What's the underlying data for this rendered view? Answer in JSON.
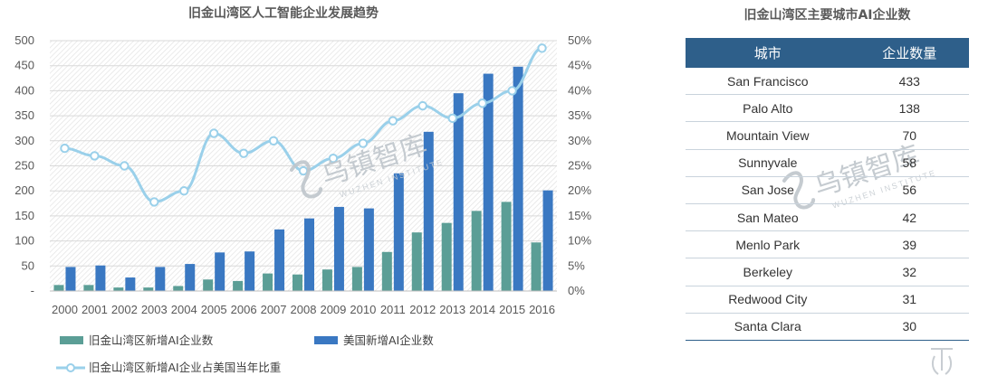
{
  "chart_data": [
    {
      "type": "bar+line",
      "title": "旧金山湾区人工智能企业发展趋势",
      "categories": [
        "2000",
        "2001",
        "2002",
        "2003",
        "2004",
        "2005",
        "2006",
        "2007",
        "2008",
        "2009",
        "2010",
        "2011",
        "2012",
        "2013",
        "2014",
        "2015",
        "2016"
      ],
      "y_left": {
        "ticks": [
          "-",
          "50",
          "100",
          "150",
          "200",
          "250",
          "300",
          "350",
          "400",
          "450",
          "500"
        ],
        "ylim": [
          0,
          500
        ]
      },
      "y_right": {
        "ticks": [
          "0%",
          "5%",
          "10%",
          "15%",
          "20%",
          "25%",
          "30%",
          "35%",
          "40%",
          "45%",
          "50%"
        ],
        "ylim": [
          0,
          50
        ]
      },
      "grid": true,
      "legend_position": "bottom",
      "series": [
        {
          "name": "旧金山湾区新增AI企业数",
          "kind": "bar",
          "axis": "left",
          "color": "#5b9e96",
          "values": [
            12,
            12,
            7,
            7,
            10,
            23,
            20,
            35,
            33,
            43,
            48,
            78,
            117,
            136,
            160,
            178,
            97
          ]
        },
        {
          "name": "美国新增AI企业数",
          "kind": "bar",
          "axis": "left",
          "color": "#3a78c2",
          "values": [
            48,
            51,
            27,
            48,
            54,
            77,
            79,
            123,
            145,
            168,
            165,
            235,
            318,
            395,
            434,
            448,
            201
          ]
        },
        {
          "name": "旧金山湾区新增AI企业占美国当年比重",
          "kind": "line",
          "axis": "right",
          "color": "#9ad0ea",
          "values": [
            28.5,
            27,
            25,
            17.8,
            20,
            31.5,
            27.5,
            30,
            24,
            26.5,
            29.5,
            34,
            37,
            34.5,
            37.5,
            40,
            48.5
          ]
        }
      ]
    },
    {
      "type": "table",
      "title": "旧金山湾区主要城市AI企业数",
      "columns": [
        "城市",
        "企业数量"
      ],
      "rows": [
        [
          "San Francisco",
          "433"
        ],
        [
          "Palo Alto",
          "138"
        ],
        [
          "Mountain View",
          "70"
        ],
        [
          "Sunnyvale",
          "58"
        ],
        [
          "San Jose",
          "56"
        ],
        [
          "San Mateo",
          "42"
        ],
        [
          "Menlo Park",
          "39"
        ],
        [
          "Berkeley",
          "32"
        ],
        [
          "Redwood City",
          "31"
        ],
        [
          "Santa Clara",
          "30"
        ]
      ]
    }
  ],
  "watermark": {
    "text": "乌镇智库",
    "subtext": "WUZHEN INSTITUTE",
    "color": "#bfc6cc",
    "icon": "wuzhen-logo-icon"
  },
  "corner_logo": {
    "icon": "yiou-logo-icon",
    "color": "#c8cdd2"
  }
}
